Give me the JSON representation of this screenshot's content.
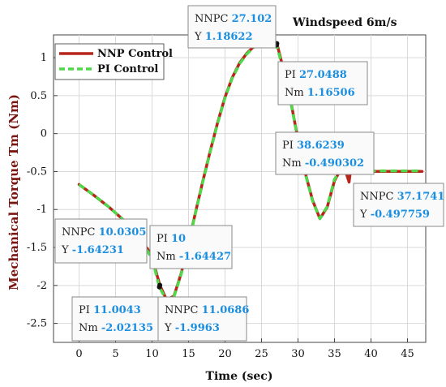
{
  "chart_data": {
    "type": "line",
    "title": "Windspeed 6m/s",
    "xlabel": "Time (sec)",
    "ylabel": "Mechanical Torque Tm (Nm)",
    "xlim": [
      -3.5,
      47.5
    ],
    "ylim": [
      -2.75,
      1.3
    ],
    "xticks": [
      0,
      5,
      10,
      15,
      20,
      25,
      30,
      35,
      40,
      45
    ],
    "yticks": [
      1,
      0.5,
      0,
      -0.5,
      -1,
      -1.5,
      -2,
      -2.5
    ],
    "ytick_labels": [
      "1",
      "0.5",
      "0",
      "-0.5",
      "-1",
      "-1.5",
      "-2",
      "-2.5"
    ],
    "grid": true,
    "legend_position": "top-left",
    "series": [
      {
        "name": "NNP Control",
        "color": "#b8251b",
        "style": "solid",
        "x": [
          0,
          2,
          4,
          6,
          8,
          10,
          10.0305,
          11.0686,
          12,
          13,
          14,
          15,
          16,
          17,
          18,
          19,
          20,
          21,
          22,
          23,
          24,
          25,
          26,
          27.102,
          28,
          29,
          30,
          31,
          32,
          33,
          34,
          35,
          36,
          36.6,
          37,
          37.1741,
          38,
          40,
          42,
          44,
          47
        ],
        "y": [
          -0.67,
          -0.81,
          -0.96,
          -1.13,
          -1.34,
          -1.6,
          -1.64231,
          -1.9963,
          -2.19,
          -2.14,
          -1.84,
          -1.44,
          -1.02,
          -0.61,
          -0.22,
          0.15,
          0.48,
          0.74,
          0.93,
          1.06,
          1.15,
          1.18,
          1.187,
          1.18622,
          0.85,
          0.43,
          -0.08,
          -0.52,
          -0.88,
          -1.12,
          -0.97,
          -0.62,
          -0.45,
          -0.52,
          -0.64,
          -0.497759,
          -0.498,
          -0.498,
          -0.498,
          -0.498,
          -0.498
        ]
      },
      {
        "name": "PI Control",
        "color": "#4fd94a",
        "style": "dashed",
        "x": [
          0,
          2,
          4,
          6,
          8,
          10,
          11.0043,
          12,
          13,
          14,
          15,
          16,
          17,
          18,
          19,
          20,
          21,
          22,
          23,
          24,
          25,
          26,
          27.0488,
          28,
          29,
          30,
          31,
          32,
          33,
          34,
          35,
          36,
          37,
          38.6239,
          40,
          42,
          44,
          47
        ],
        "y": [
          -0.67,
          -0.81,
          -0.96,
          -1.13,
          -1.34,
          -1.64427,
          -2.02135,
          -2.2,
          -2.15,
          -1.85,
          -1.45,
          -1.03,
          -0.62,
          -0.23,
          0.14,
          0.47,
          0.73,
          0.92,
          1.05,
          1.14,
          1.17,
          1.17,
          1.16506,
          0.84,
          0.42,
          -0.09,
          -0.53,
          -0.89,
          -1.12,
          -0.96,
          -0.6,
          -0.48,
          -0.49,
          -0.490302,
          -0.491,
          -0.491,
          -0.491,
          -0.491
        ]
      }
    ],
    "annotations": [
      {
        "name1": "NNPC",
        "val1": "27.102",
        "name2": "Y",
        "val2": "1.18622",
        "x": 27.102,
        "y": 1.18622
      },
      {
        "name1": "PI",
        "val1": "27.0488",
        "name2": "Nm",
        "val2": "1.16506",
        "x": 27.0488,
        "y": 1.16506
      },
      {
        "name1": "PI",
        "val1": "38.6239",
        "name2": "Nm",
        "val2": "-0.490302",
        "x": 38.6239,
        "y": -0.490302
      },
      {
        "name1": "NNPC",
        "val1": "37.1741",
        "name2": "Y",
        "val2": "-0.497759",
        "x": 37.1741,
        "y": -0.497759
      },
      {
        "name1": "NNPC",
        "val1": "10.0305",
        "name2": "Y",
        "val2": "-1.64231",
        "x": 10.0305,
        "y": -1.64231
      },
      {
        "name1": "PI",
        "val1": "10",
        "name2": "Nm",
        "val2": "-1.64427",
        "x": 10,
        "y": -1.64427
      },
      {
        "name1": "PI",
        "val1": "11.0043",
        "name2": "Nm",
        "val2": "-2.02135",
        "x": 11.0043,
        "y": -2.02135
      },
      {
        "name1": "NNPC",
        "val1": "11.0686",
        "name2": "Y",
        "val2": "-1.9963",
        "x": 11.0686,
        "y": -1.9963
      }
    ]
  }
}
